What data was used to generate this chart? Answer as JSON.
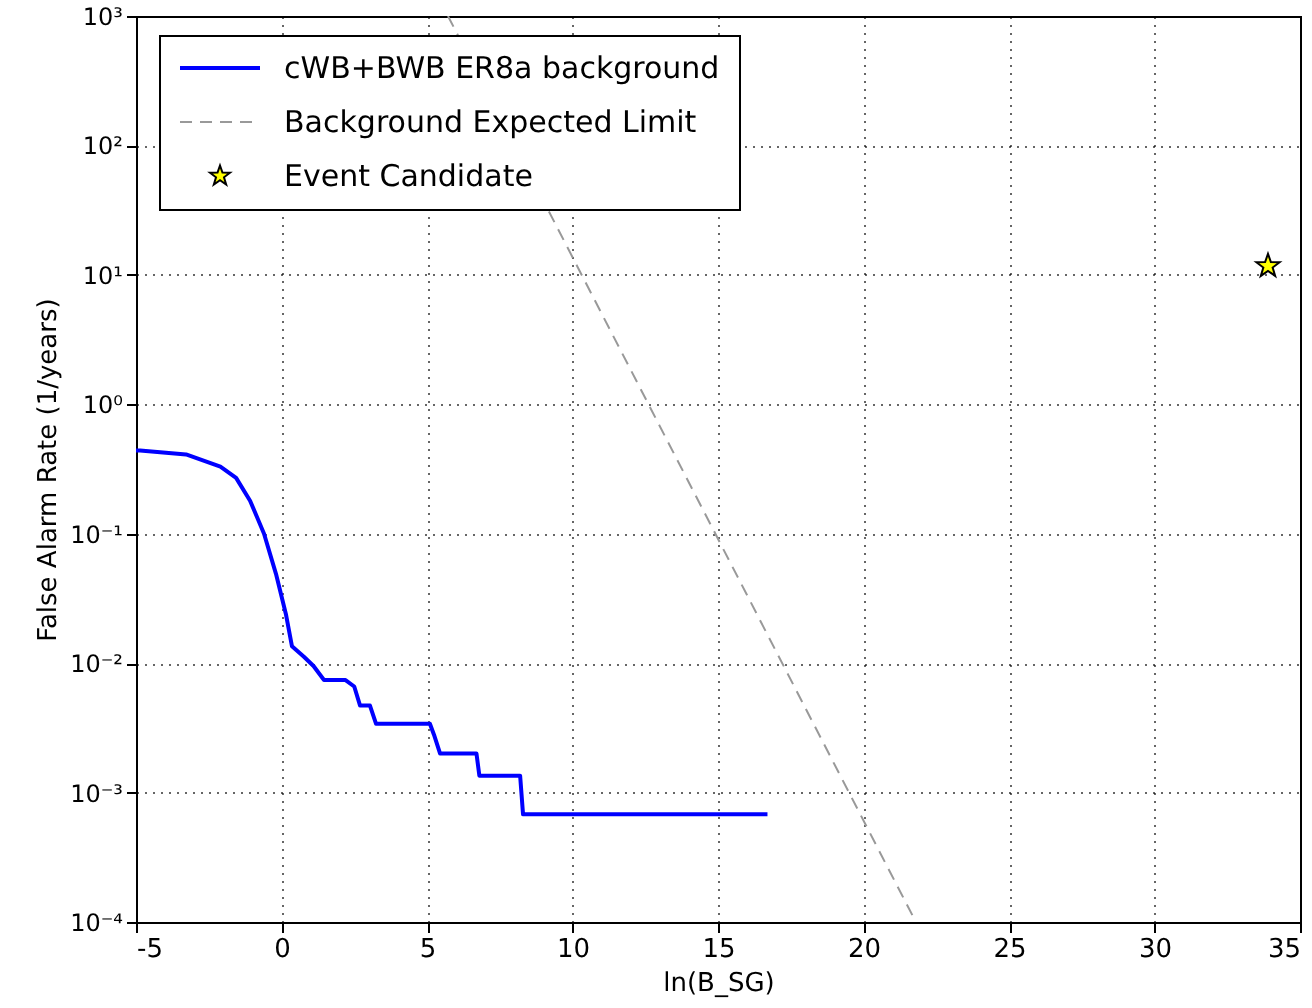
{
  "chart_data": {
    "type": "line",
    "xlabel": "ln(B_SG)",
    "ylabel": "False Alarm Rate (1/years)",
    "xlim": [
      -5,
      35
    ],
    "xticks": [
      -5,
      0,
      5,
      10,
      15,
      20,
      25,
      30,
      35
    ],
    "ylim": [
      0.0001,
      1000
    ],
    "log": "y",
    "yticks": [
      {
        "value": 0.0001,
        "label": "10⁻⁴"
      },
      {
        "value": 0.001,
        "label": "10⁻³"
      },
      {
        "value": 0.01,
        "label": "10⁻²"
      },
      {
        "value": 0.1,
        "label": "10⁻¹"
      },
      {
        "value": 1,
        "label": "10⁰"
      },
      {
        "value": 10,
        "label": "10¹"
      },
      {
        "value": 100,
        "label": "10²"
      },
      {
        "value": 1000,
        "label": "10³"
      }
    ],
    "grid": true,
    "legend": "top left",
    "series": [
      {
        "name": "cWB+BWB ER8a background",
        "color": "#0000ff",
        "line_style": "solid",
        "x": [
          -5,
          -4.86,
          -3.28,
          -2.1,
          -1.56,
          -1.08,
          -0.6,
          -0.19,
          0.15,
          0.36,
          0.77,
          1.1,
          1.46,
          2.2,
          2.5,
          2.7,
          3.04,
          3.25,
          5.1,
          5.24,
          5.45,
          6.7,
          6.8,
          8.2,
          8.3,
          16.7
        ],
        "values": [
          0.44,
          0.44,
          0.41,
          0.33,
          0.27,
          0.18,
          0.1,
          0.049,
          0.024,
          0.0135,
          0.0112,
          0.0095,
          0.0074,
          0.0074,
          0.0066,
          0.0047,
          0.0047,
          0.0034,
          0.0034,
          0.0028,
          0.002,
          0.002,
          0.00135,
          0.00135,
          0.00068,
          0.00068
        ]
      },
      {
        "name": "Background Expected Limit",
        "color": "#999999",
        "line_style": "dashed",
        "x": [
          5.72,
          21.8
        ],
        "values": [
          1000,
          0.0001
        ]
      },
      {
        "name": "Event Candidate",
        "type": "scatter",
        "color": "#ffff00",
        "marker": "star",
        "x": [
          33.9
        ],
        "values": [
          11.7
        ]
      }
    ]
  }
}
